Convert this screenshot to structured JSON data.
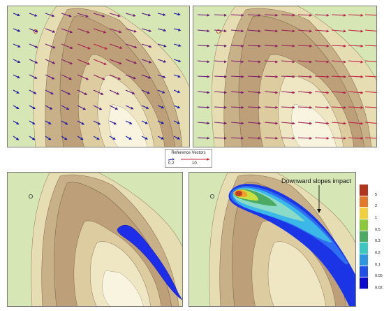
{
  "colors": {
    "background_green": "#d9e8b8",
    "ridge_brown": "#b49470",
    "arrow_blue": "#1a1aa8",
    "arrow_red": "#c4233a",
    "plume_blue": "#1a36e0",
    "panel_border": "#7a7a7a"
  },
  "legend": {
    "title": "Reference Vectors",
    "min_label": "0.2",
    "max_label": "10"
  },
  "annotation": {
    "text": "Downward slopes impact",
    "icon": "arrow-down-icon"
  },
  "colorbar": {
    "labels": [
      "5",
      "2",
      "1",
      "0.5",
      "0.3",
      "0.2",
      "0.1",
      "0.05",
      "0.02"
    ],
    "colors": [
      "#b0351a",
      "#e27a2a",
      "#f0d040",
      "#8cc83c",
      "#4caa64",
      "#3cc8c0",
      "#2e96e0",
      "#2050e8",
      "#0a0ad0"
    ]
  }
}
